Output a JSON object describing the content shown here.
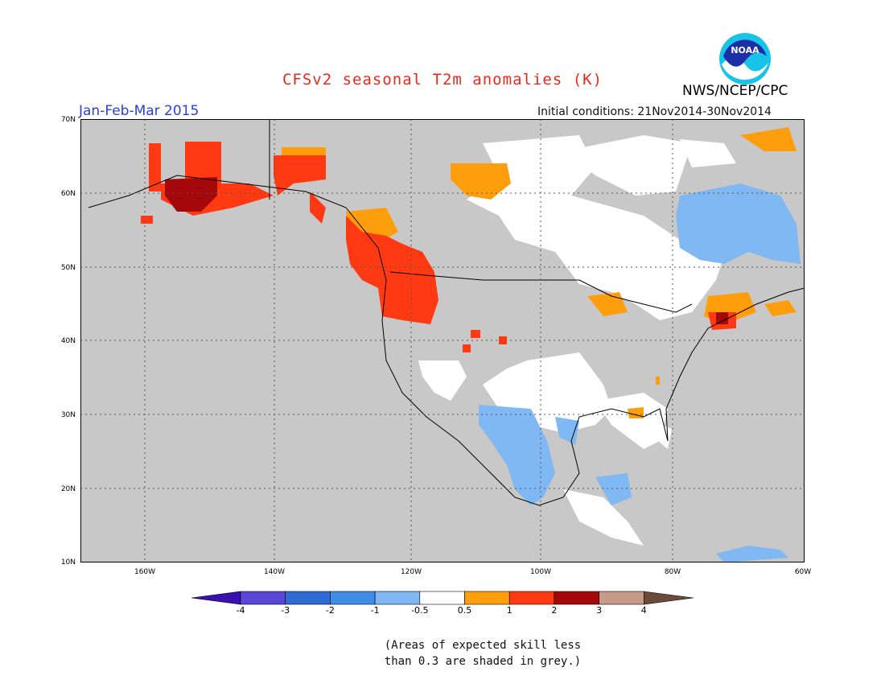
{
  "title": "CFSv2 seasonal T2m anomalies (K)",
  "period": "Jan-Feb-Mar 2015",
  "initial_conditions": "Initial conditions: 21Nov2014-30Nov2014",
  "agency": "NWS/NCEP/CPC",
  "logo_text": "NOAA",
  "map": {
    "lat_labels": [
      "70N",
      "60N",
      "50N",
      "40N",
      "30N",
      "20N",
      "10N"
    ],
    "lon_labels": [
      "160W",
      "140W",
      "120W",
      "100W",
      "80W",
      "60W"
    ],
    "lon_range": [
      -172,
      -60
    ],
    "lat_range": [
      10,
      70
    ],
    "background_color": "#c8c8c8"
  },
  "legend": {
    "levels": [
      "-4",
      "-3",
      "-2",
      "-1",
      "-0.5",
      "0.5",
      "1",
      "2",
      "3",
      "4"
    ],
    "colors": [
      "#3a10b0",
      "#5b46d6",
      "#2f6bd2",
      "#3e8ee8",
      "#7fb8f2",
      "#ffffff",
      "#ff9e0c",
      "#ff3a12",
      "#a50808",
      "#c79b8a",
      "#6e4a3a"
    ]
  },
  "note_line1": "(Areas of expected skill less",
  "note_line2": "than 0.3 are shaded in grey.)"
}
